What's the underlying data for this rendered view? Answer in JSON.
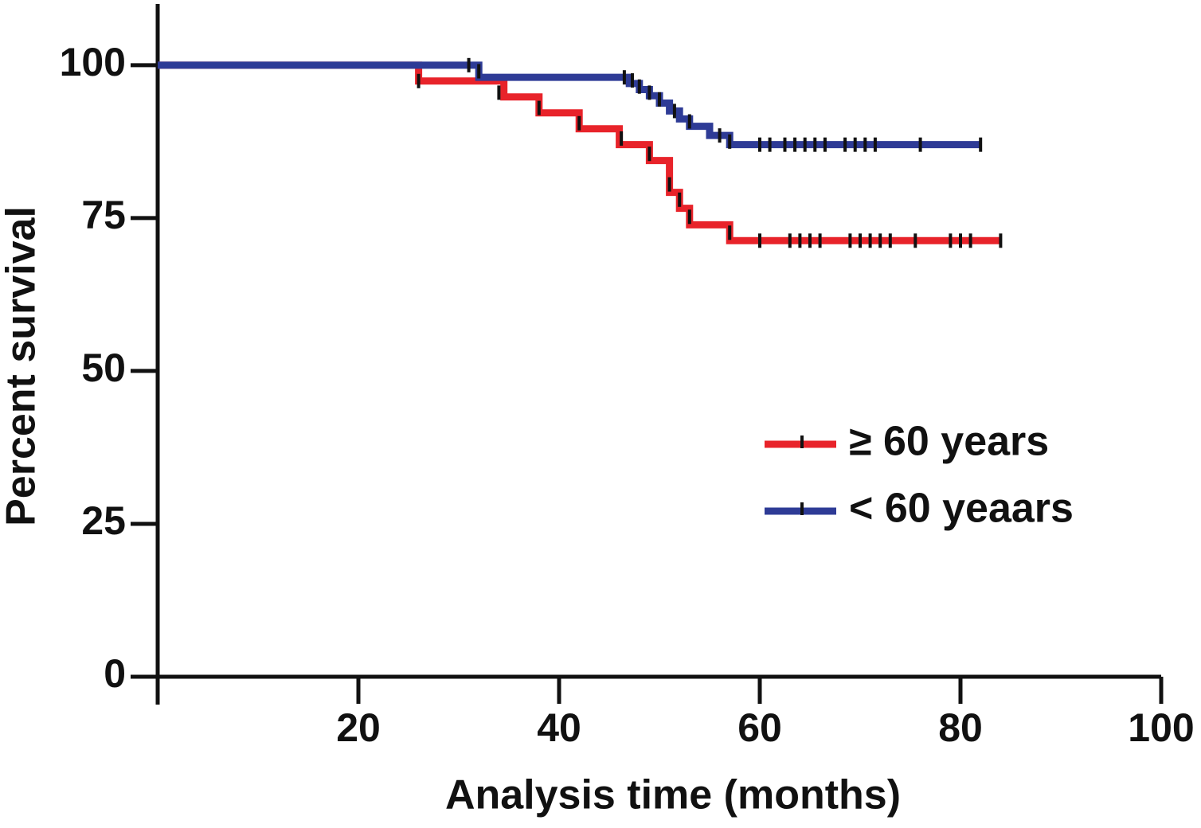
{
  "chart_data": {
    "type": "km",
    "x_label": "Analysis time (months)",
    "y_label": "Percent survival",
    "xlim": [
      0,
      100
    ],
    "xticks": [
      20,
      40,
      60,
      80,
      100
    ],
    "ylim": [
      0,
      110
    ],
    "yticks": [
      0,
      25,
      50,
      75,
      100
    ],
    "legend": "right",
    "series": [
      {
        "name": "≥ 60 years",
        "color": "#e8232a",
        "x": [
          0,
          26,
          34.5,
          38,
          42,
          46,
          49,
          51,
          52,
          53,
          57,
          84
        ],
        "values": [
          100,
          97.4,
          94.8,
          92.2,
          89.6,
          87,
          84.4,
          79.2,
          76.6,
          73.9,
          71.3,
          71.3
        ],
        "censored_x": [
          26,
          34,
          38,
          42,
          46.2,
          49,
          51,
          52,
          53,
          57,
          60,
          63,
          64,
          65,
          66,
          69,
          70,
          71,
          72,
          73,
          75.5,
          79,
          80,
          81,
          84
        ],
        "censored_values": [
          97.4,
          95.5,
          93,
          90.5,
          88,
          85.5,
          80.5,
          78,
          75.2,
          72.6,
          71.3,
          71.3,
          71.3,
          71.3,
          71.3,
          71.3,
          71.3,
          71.3,
          71.3,
          71.3,
          71.3,
          71.3,
          71.3,
          71.3,
          71.3
        ]
      },
      {
        "name": "< 60 yeaars",
        "color": "#2e3b96",
        "x": [
          0,
          32,
          47,
          48,
          49,
          50,
          51,
          52,
          53,
          55,
          57,
          82
        ],
        "values": [
          100,
          98,
          97,
          96,
          95,
          93.8,
          92.5,
          91.2,
          90,
          88.5,
          87,
          87
        ],
        "censored_x": [
          31,
          32,
          46.5,
          47.3,
          48,
          49,
          50,
          51.5,
          53,
          56,
          57,
          60,
          61,
          62.5,
          63.5,
          64.5,
          65.5,
          66.5,
          68.5,
          69.5,
          70.5,
          71.5,
          76,
          82
        ],
        "censored_values": [
          100,
          99,
          98,
          97.5,
          96.5,
          95.5,
          94.4,
          92.5,
          90.8,
          88.5,
          87.5,
          87,
          87,
          87,
          87,
          87,
          87,
          87,
          87,
          87,
          87,
          87,
          87,
          87
        ]
      }
    ]
  }
}
